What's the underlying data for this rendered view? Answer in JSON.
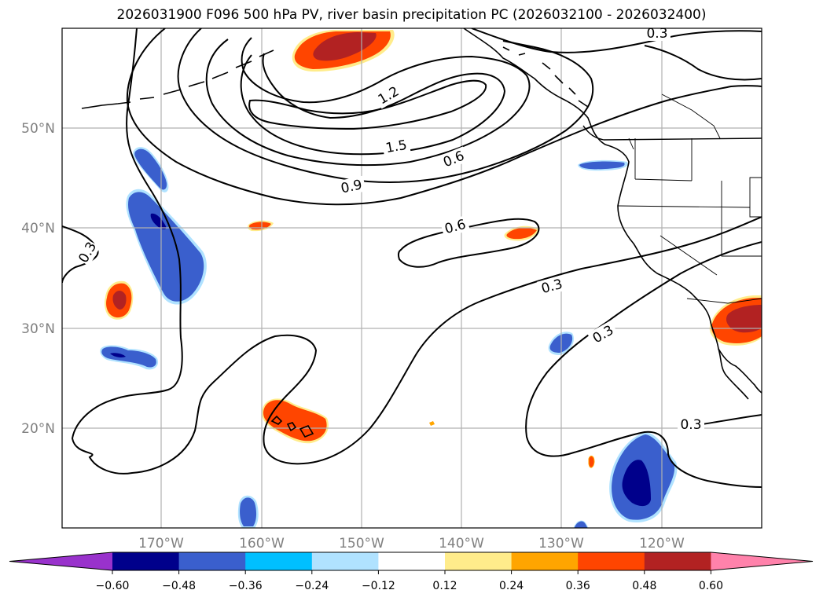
{
  "title": "2026031900 F096 500 hPa PV, river basin precipitation PC (2026032100 - 2026032400)",
  "map": {
    "lon_ticks": [
      "170°W",
      "160°W",
      "150°W",
      "140°W",
      "130°W",
      "120°W"
    ],
    "lat_ticks": [
      "50°N",
      "40°N",
      "30°N",
      "20°N"
    ],
    "contour_labels": [
      "0.3",
      "1.2",
      "1.5",
      "0.6",
      "0.9",
      "0.6",
      "0.3",
      "0.3",
      "0.3",
      "0.3"
    ]
  },
  "colorbar": {
    "ticks": [
      "−0.60",
      "−0.48",
      "−0.36",
      "−0.24",
      "−0.12",
      "0.12",
      "0.24",
      "0.36",
      "0.48",
      "0.60"
    ],
    "colors": [
      "#9932cc",
      "#00008b",
      "#3a5fcd",
      "#00bfff",
      "#b0e2ff",
      "#ffffff",
      "#ffec8b",
      "#ffa500",
      "#ff4500",
      "#b22222",
      "#ff82ab"
    ]
  },
  "colors": {
    "contour": "#000000",
    "coast": "#000000",
    "grid": "#b0b0b0",
    "dark_blue": "#00008b",
    "mid_blue": "#3a5fcd",
    "sky_blue": "#00bfff",
    "light_blue": "#b0e2ff",
    "yellow": "#ffec8b",
    "orange": "#ffa500",
    "red_orange": "#ff4500",
    "dark_red": "#b22222"
  }
}
